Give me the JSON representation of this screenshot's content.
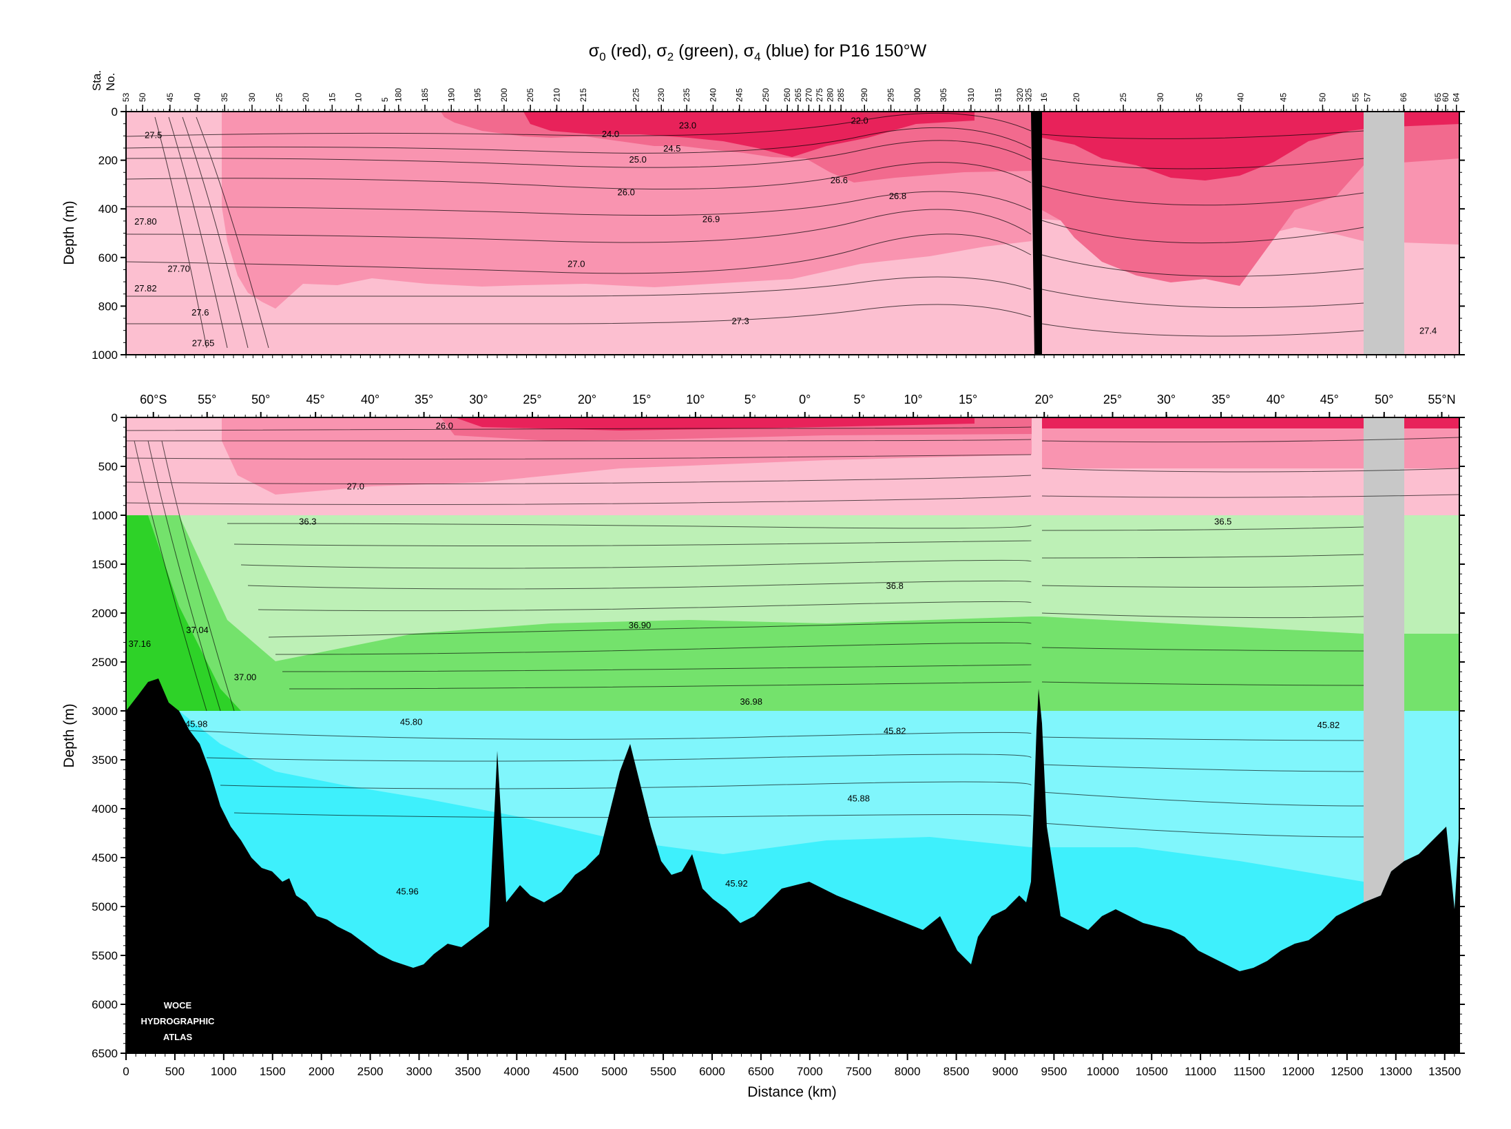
{
  "title": {
    "sigma0": "σ",
    "sub0": "0",
    "red": " (red), ",
    "sigma2": "σ",
    "sub2": "2",
    "green": " (green), ",
    "sigma4": "σ",
    "sub4": "4",
    "blue": " (blue) for P16 150°W"
  },
  "station_axis_label_1": "Sta.",
  "station_axis_label_2": "No.",
  "logo": {
    "line1": "WOCE",
    "line2": "HYDROGRAPHIC",
    "line3": "ATLAS"
  },
  "colors": {
    "red_dark": "#e8225a",
    "red_mid": "#f26a8e",
    "red_light": "#f994b0",
    "red_pale": "#fcbfd0",
    "green_pale": "#bdf0b6",
    "green_mid": "#74e26c",
    "green_dark": "#2ed228",
    "cyan_pale": "#80f6fc",
    "cyan_mid": "#3ef0fc",
    "land": "#000000",
    "nodata": "#c8c8c8"
  },
  "chart_data": [
    {
      "type": "contour",
      "panel": "upper",
      "variable": "σ0",
      "ylabel": "Depth (m)",
      "ylim": [
        1000,
        0
      ],
      "xlim": [
        0,
        13650
      ],
      "y_ticks": [
        0,
        200,
        400,
        600,
        800,
        1000
      ],
      "station_ticks": [
        {
          "label": "53",
          "x": 0
        },
        {
          "label": "50",
          "x": 170
        },
        {
          "label": "45",
          "x": 450
        },
        {
          "label": "40",
          "x": 730
        },
        {
          "label": "35",
          "x": 1010
        },
        {
          "label": "30",
          "x": 1290
        },
        {
          "label": "25",
          "x": 1570
        },
        {
          "label": "20",
          "x": 1840
        },
        {
          "label": "15",
          "x": 2110
        },
        {
          "label": "10",
          "x": 2380
        },
        {
          "label": "5",
          "x": 2650
        },
        {
          "label": "180",
          "x": 2790
        },
        {
          "label": "185",
          "x": 3060
        },
        {
          "label": "190",
          "x": 3330
        },
        {
          "label": "195",
          "x": 3600
        },
        {
          "label": "200",
          "x": 3870
        },
        {
          "label": "205",
          "x": 4140
        },
        {
          "label": "210",
          "x": 4410
        },
        {
          "label": "215",
          "x": 4680
        },
        {
          "label": "225",
          "x": 5220
        },
        {
          "label": "230",
          "x": 5480
        },
        {
          "label": "235",
          "x": 5740
        },
        {
          "label": "240",
          "x": 6010
        },
        {
          "label": "245",
          "x": 6280
        },
        {
          "label": "250",
          "x": 6550
        },
        {
          "label": "260",
          "x": 6770
        },
        {
          "label": "265",
          "x": 6880
        },
        {
          "label": "270",
          "x": 6990
        },
        {
          "label": "275",
          "x": 7100
        },
        {
          "label": "280",
          "x": 7210
        },
        {
          "label": "285",
          "x": 7320
        },
        {
          "label": "290",
          "x": 7560
        },
        {
          "label": "295",
          "x": 7830
        },
        {
          "label": "300",
          "x": 8100
        },
        {
          "label": "305",
          "x": 8370
        },
        {
          "label": "310",
          "x": 8650
        },
        {
          "label": "315",
          "x": 8930
        },
        {
          "label": "320",
          "x": 9150
        },
        {
          "label": "325",
          "x": 9240
        },
        {
          "label": "16",
          "x": 9400
        },
        {
          "label": "20",
          "x": 9730
        },
        {
          "label": "25",
          "x": 10210
        },
        {
          "label": "30",
          "x": 10590
        },
        {
          "label": "35",
          "x": 10990
        },
        {
          "label": "40",
          "x": 11410
        },
        {
          "label": "45",
          "x": 11850
        },
        {
          "label": "50",
          "x": 12250
        },
        {
          "label": "55",
          "x": 12590
        },
        {
          "label": "57",
          "x": 12710
        },
        {
          "label": "66",
          "x": 13080
        },
        {
          "label": "65",
          "x": 13430
        },
        {
          "label": "60",
          "x": 13510
        },
        {
          "label": "64",
          "x": 13620
        }
      ],
      "contour_labels": [
        {
          "text": "27.5",
          "x": 280,
          "y": 95
        },
        {
          "text": "27.80",
          "x": 200,
          "y": 450
        },
        {
          "text": "27.70",
          "x": 540,
          "y": 645
        },
        {
          "text": "27.82",
          "x": 200,
          "y": 725
        },
        {
          "text": "27.6",
          "x": 760,
          "y": 825
        },
        {
          "text": "27.65",
          "x": 790,
          "y": 950
        },
        {
          "text": "22.0",
          "x": 7510,
          "y": 35
        },
        {
          "text": "23.0",
          "x": 5750,
          "y": 55
        },
        {
          "text": "24.0",
          "x": 4960,
          "y": 90
        },
        {
          "text": "24.5",
          "x": 5590,
          "y": 150
        },
        {
          "text": "25.0",
          "x": 5240,
          "y": 195
        },
        {
          "text": "26.0",
          "x": 5120,
          "y": 330
        },
        {
          "text": "26.6",
          "x": 7300,
          "y": 280
        },
        {
          "text": "26.8",
          "x": 7900,
          "y": 345
        },
        {
          "text": "26.9",
          "x": 5990,
          "y": 440
        },
        {
          "text": "27.0",
          "x": 4610,
          "y": 625
        },
        {
          "text": "27.3",
          "x": 6290,
          "y": 860
        },
        {
          "text": "27.4",
          "x": 13330,
          "y": 900
        }
      ]
    },
    {
      "type": "contour",
      "panel": "lower",
      "variables": [
        "σ0 (0–1000 m)",
        "σ2 (1000–3000 m)",
        "σ4 (3000–6500 m)"
      ],
      "ylabel": "Depth (m)",
      "xlabel": "Distance (km)",
      "ylim": [
        6500,
        0
      ],
      "xlim": [
        0,
        13650
      ],
      "y_ticks": [
        0,
        500,
        1000,
        1500,
        2000,
        2500,
        3000,
        3500,
        4000,
        4500,
        5000,
        5500,
        6000,
        6500
      ],
      "x_ticks": [
        0,
        500,
        1000,
        1500,
        2000,
        2500,
        3000,
        3500,
        4000,
        4500,
        5000,
        5500,
        6000,
        6500,
        7000,
        7500,
        8000,
        8500,
        9000,
        9500,
        10000,
        10500,
        11000,
        11500,
        12000,
        12500,
        13000,
        13500
      ],
      "latitude_ticks": [
        {
          "label": "60°S",
          "x": 280
        },
        {
          "label": "55°",
          "x": 830
        },
        {
          "label": "50°",
          "x": 1380
        },
        {
          "label": "45°",
          "x": 1940
        },
        {
          "label": "40°",
          "x": 2500
        },
        {
          "label": "35°",
          "x": 3050
        },
        {
          "label": "30°",
          "x": 3610
        },
        {
          "label": "25°",
          "x": 4160
        },
        {
          "label": "20°",
          "x": 4720
        },
        {
          "label": "15°",
          "x": 5280
        },
        {
          "label": "10°",
          "x": 5830
        },
        {
          "label": "5°",
          "x": 6390
        },
        {
          "label": "0°",
          "x": 6950
        },
        {
          "label": "5°",
          "x": 7510
        },
        {
          "label": "10°",
          "x": 8060
        },
        {
          "label": "15°",
          "x": 8620
        },
        {
          "label": "20°",
          "x": 9400
        },
        {
          "label": "25°",
          "x": 10100
        },
        {
          "label": "30°",
          "x": 10650
        },
        {
          "label": "35°",
          "x": 11210
        },
        {
          "label": "40°",
          "x": 11770
        },
        {
          "label": "45°",
          "x": 12320
        },
        {
          "label": "50°",
          "x": 12880
        },
        {
          "label": "55°N",
          "x": 13470
        }
      ],
      "contour_labels": [
        {
          "text": "26.0",
          "x": 3260,
          "y": 80
        },
        {
          "text": "27.0",
          "x": 2350,
          "y": 700
        },
        {
          "text": "36.3",
          "x": 1860,
          "y": 1060
        },
        {
          "text": "36.5",
          "x": 11230,
          "y": 1060
        },
        {
          "text": "36.8",
          "x": 7870,
          "y": 1720
        },
        {
          "text": "36.90",
          "x": 5260,
          "y": 2120
        },
        {
          "text": "37.16",
          "x": 140,
          "y": 2310
        },
        {
          "text": "37.04",
          "x": 730,
          "y": 2170
        },
        {
          "text": "37.00",
          "x": 1220,
          "y": 2650
        },
        {
          "text": "36.98",
          "x": 6400,
          "y": 2900
        },
        {
          "text": "45.98",
          "x": 720,
          "y": 3130
        },
        {
          "text": "45.80",
          "x": 2920,
          "y": 3110
        },
        {
          "text": "45.82",
          "x": 7870,
          "y": 3200
        },
        {
          "text": "45.82",
          "x": 12310,
          "y": 3140
        },
        {
          "text": "45.88",
          "x": 7500,
          "y": 3890
        },
        {
          "text": "45.92",
          "x": 6250,
          "y": 4760
        },
        {
          "text": "45.96",
          "x": 2880,
          "y": 4840
        }
      ]
    }
  ]
}
